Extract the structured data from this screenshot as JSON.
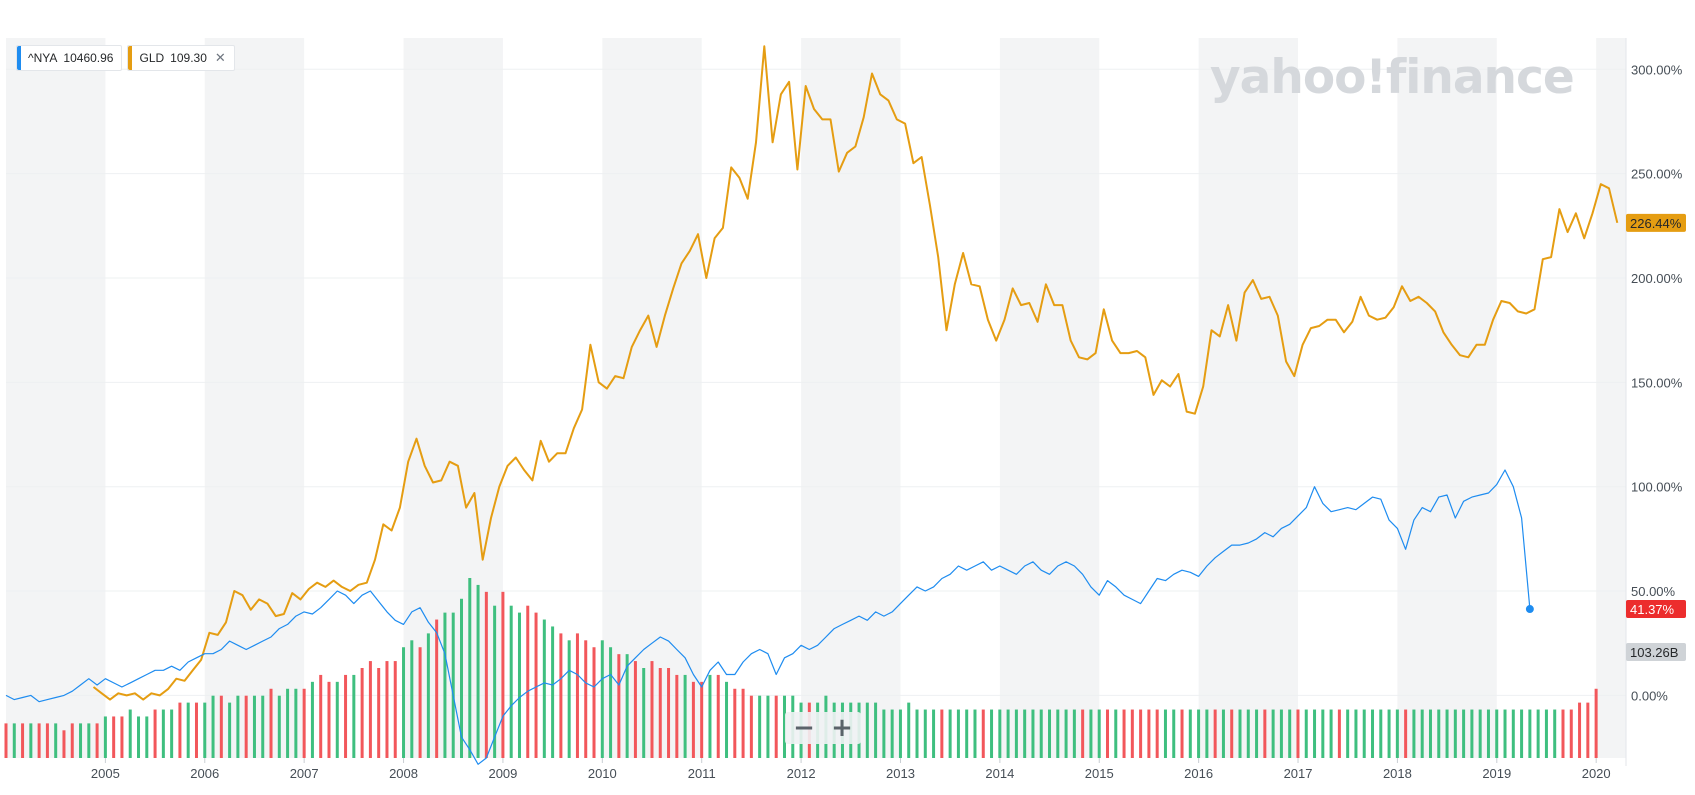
{
  "legend": [
    {
      "symbol": "^NYA",
      "value": "10460.96",
      "color": "#1e8cf0",
      "closable": false
    },
    {
      "symbol": "GLD",
      "value": "109.30",
      "color": "#e59d12",
      "closable": true
    }
  ],
  "watermark": "yahoo!finance",
  "zoom": {
    "minus": "−",
    "plus": "+"
  },
  "colors": {
    "nya": "#1e8cf0",
    "gld": "#e59d12",
    "vol_up": "#3fbf7f",
    "vol_down": "#f2575b",
    "band": "#f3f4f5",
    "last_nya_badge": "#ec2d2d",
    "volume_badge": "#cfd3d7"
  },
  "chart_data": {
    "type": "line",
    "x_axis": {
      "ticks": [
        "2005",
        "2006",
        "2007",
        "2008",
        "2009",
        "2010",
        "2011",
        "2012",
        "2013",
        "2014",
        "2015",
        "2016",
        "2017",
        "2018",
        "2019",
        "2020"
      ],
      "range": [
        2004.0,
        2020.3
      ]
    },
    "y_axis": {
      "unit": "%",
      "ticks": [
        "300.00%",
        "250.00%",
        "200.00%",
        "150.00%",
        "100.00%",
        "50.00%",
        "0.00%"
      ],
      "range": [
        -30,
        315
      ],
      "position": "right"
    },
    "grid": true,
    "badges": {
      "gld_last": "226.44%",
      "nya_last": "41.37%",
      "volume_last": "103.26B"
    },
    "series": [
      {
        "name": "GLD",
        "start": 2004.88,
        "step": 0.08333,
        "values": [
          4,
          1,
          -2,
          1,
          0,
          1,
          -2,
          1,
          0,
          3,
          8,
          7,
          12,
          17,
          30,
          29,
          35,
          50,
          48,
          41,
          46,
          44,
          38,
          39,
          49,
          46,
          51,
          54,
          52,
          55,
          52,
          50,
          53,
          54,
          65,
          82,
          79,
          90,
          112,
          123,
          110,
          102,
          103,
          112,
          110,
          90,
          97,
          65,
          85,
          100,
          110,
          114,
          108,
          103,
          122,
          112,
          116,
          116,
          128,
          137,
          168,
          150,
          147,
          153,
          152,
          167,
          175,
          182,
          167,
          182,
          195,
          207,
          213,
          221,
          200,
          219,
          224,
          253,
          248,
          238,
          265,
          311,
          265,
          288,
          294,
          252,
          292,
          281,
          276,
          276,
          251,
          260,
          263,
          277,
          298,
          288,
          285,
          276,
          274,
          255,
          258,
          235,
          210,
          175,
          197,
          212,
          197,
          196,
          180,
          170,
          180,
          195,
          187,
          188,
          179,
          197,
          187,
          187,
          170,
          162,
          161,
          164,
          185,
          170,
          164,
          164,
          165,
          162,
          144,
          151,
          148,
          154,
          136,
          135,
          148,
          175,
          172,
          187,
          170,
          193,
          199,
          190,
          191,
          182,
          160,
          153,
          168,
          176,
          177,
          180,
          180,
          174,
          179,
          191,
          182,
          180,
          181,
          186,
          196,
          189,
          191,
          188,
          184,
          174,
          168,
          163,
          162,
          168,
          168,
          180,
          189,
          188,
          184,
          183,
          185,
          209,
          210,
          233,
          222,
          231,
          219,
          231,
          245,
          243,
          226.44
        ]
      },
      {
        "name": "^NYA",
        "start": 2004.0,
        "step": 0.08333,
        "values": [
          0,
          -2,
          -1,
          0,
          -3,
          -2,
          -1,
          0,
          2,
          5,
          8,
          5,
          8,
          6,
          4,
          6,
          8,
          10,
          12,
          12,
          14,
          12,
          16,
          18,
          20,
          20,
          22,
          26,
          24,
          22,
          24,
          26,
          28,
          32,
          34,
          38,
          40,
          39,
          42,
          46,
          50,
          48,
          44,
          48,
          50,
          45,
          40,
          36,
          34,
          40,
          42,
          35,
          30,
          20,
          0,
          -20,
          -26,
          -33,
          -30,
          -20,
          -10,
          -5,
          -1,
          2,
          4,
          6,
          5,
          8,
          12,
          10,
          6,
          4,
          8,
          10,
          5,
          14,
          18,
          22,
          25,
          28,
          26,
          22,
          18,
          10,
          4,
          12,
          16,
          10,
          10,
          16,
          20,
          22,
          20,
          10,
          18,
          20,
          24,
          22,
          24,
          28,
          32,
          34,
          36,
          38,
          36,
          40,
          38,
          40,
          44,
          48,
          52,
          50,
          52,
          56,
          58,
          62,
          60,
          62,
          64,
          60,
          62,
          60,
          58,
          62,
          64,
          60,
          58,
          62,
          64,
          62,
          58,
          52,
          48,
          55,
          52,
          48,
          46,
          44,
          50,
          56,
          55,
          58,
          60,
          59,
          57,
          62,
          66,
          69,
          72,
          72,
          73,
          75,
          78,
          76,
          80,
          82,
          86,
          90,
          100,
          92,
          88,
          89,
          90,
          89,
          92,
          95,
          94,
          84,
          80,
          70,
          84,
          90,
          88,
          95,
          96,
          85,
          93,
          95,
          96,
          97,
          101,
          108,
          100,
          85,
          41.37
        ]
      }
    ],
    "volume": {
      "start": 2004.0,
      "step": 0.08333,
      "unit": "relative",
      "values": [
        5,
        5,
        5,
        5,
        5,
        5,
        5,
        4,
        5,
        5,
        5,
        5,
        6,
        6,
        6,
        7,
        6,
        6,
        7,
        7,
        7,
        8,
        8,
        8,
        8,
        9,
        9,
        8,
        9,
        9,
        9,
        9,
        10,
        9,
        10,
        10,
        10,
        11,
        12,
        11,
        11,
        12,
        12,
        13,
        14,
        13,
        14,
        14,
        16,
        17,
        16,
        18,
        20,
        21,
        21,
        23,
        26,
        25,
        24,
        22,
        24,
        22,
        21,
        22,
        21,
        20,
        19,
        18,
        17,
        18,
        17,
        16,
        17,
        16,
        15,
        15,
        14,
        13,
        14,
        13,
        13,
        12,
        12,
        11,
        11,
        12,
        12,
        11,
        10,
        10,
        9,
        9,
        9,
        9,
        9,
        9,
        8,
        8,
        8,
        9,
        8,
        8,
        8,
        8,
        8,
        8,
        7,
        7,
        7,
        8,
        7,
        7,
        7,
        7,
        7,
        7,
        7,
        7,
        7,
        7,
        7,
        7,
        7,
        7,
        7,
        7,
        7,
        7,
        7,
        7,
        7,
        7,
        7,
        7,
        7,
        7,
        7,
        7,
        7,
        7,
        7,
        7,
        7,
        7,
        7,
        7,
        7,
        7,
        7,
        7,
        7,
        7,
        7,
        7,
        7,
        7,
        7,
        7,
        7,
        7,
        7,
        7,
        7,
        7,
        7,
        7,
        7,
        7,
        7,
        7,
        7,
        7,
        7,
        7,
        7,
        7,
        7,
        7,
        7,
        7,
        7,
        7,
        7,
        7,
        7,
        7,
        7,
        7,
        7,
        7,
        8,
        8,
        10
      ],
      "direction": [
        0,
        1,
        0,
        1,
        0,
        0,
        1,
        0,
        0,
        1,
        1,
        0,
        1,
        0,
        0,
        1,
        1,
        1,
        0,
        1,
        1,
        0,
        1,
        0,
        1,
        1,
        0,
        1,
        1,
        0,
        1,
        1,
        0,
        1,
        1,
        1,
        0,
        1,
        0,
        0,
        1,
        0,
        1,
        0,
        0,
        0,
        0,
        0,
        1,
        1,
        0,
        1,
        0,
        1,
        1,
        1,
        1,
        1,
        0,
        1,
        0,
        1,
        1,
        0,
        0,
        1,
        1,
        0,
        1,
        0,
        0,
        0,
        1,
        1,
        0,
        1,
        0,
        1,
        0,
        0,
        0,
        0,
        1,
        0,
        0,
        1,
        0,
        1,
        0,
        0,
        0,
        1,
        1,
        0,
        1,
        1,
        1,
        0,
        1,
        1,
        1,
        1,
        1,
        1,
        1,
        1,
        1,
        1,
        1,
        1,
        1,
        1,
        1,
        0,
        1,
        1,
        1,
        1,
        0,
        1,
        1,
        1,
        1,
        1,
        1,
        1,
        1,
        1,
        1,
        1,
        0,
        1,
        1,
        0,
        1,
        0,
        0,
        0,
        0,
        0,
        1,
        1,
        0,
        1,
        1,
        1,
        0,
        1,
        0,
        1,
        1,
        1,
        0,
        1,
        1,
        1,
        0,
        1,
        1,
        1,
        1,
        0,
        1,
        1,
        1,
        1,
        1,
        1,
        1,
        0,
        1,
        1,
        1,
        1,
        1,
        1,
        1,
        1,
        1,
        1,
        1,
        1,
        1,
        1,
        1,
        1,
        1,
        1,
        0,
        0,
        0
      ]
    }
  }
}
